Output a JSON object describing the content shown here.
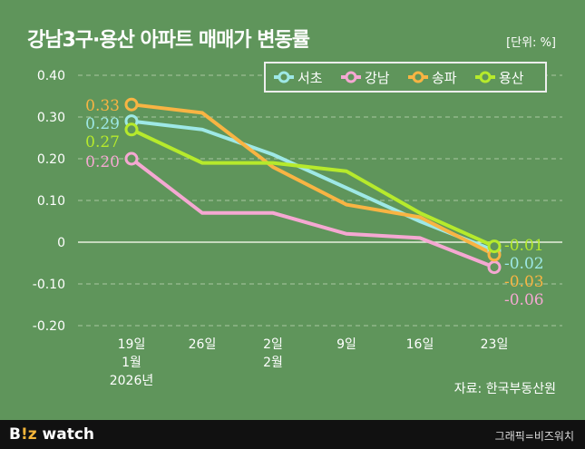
{
  "title": "강남3구·용산 아파트 매매가 변동률",
  "unit": "[단위: %]",
  "source": "자료: 한국부동산원",
  "footer": {
    "logo_a": "B",
    "logo_b": "!z",
    "logo_c": " watch",
    "credit": "그래픽=비즈워치"
  },
  "chart_data": {
    "type": "line",
    "title": "강남3구·용산 아파트 매매가 변동률",
    "ylabel": "%",
    "ylim": [
      -0.2,
      0.4
    ],
    "yticks": [
      "0.40",
      "0.30",
      "0.20",
      "0.10",
      "0",
      "-0.10",
      "-0.20"
    ],
    "ytick_values": [
      0.4,
      0.3,
      0.2,
      0.1,
      0,
      -0.1,
      -0.2
    ],
    "categories": [
      [
        "19일",
        "1월",
        "2026년"
      ],
      [
        "26일"
      ],
      [
        "2일",
        "2월"
      ],
      [
        "9일"
      ],
      [
        "16일"
      ],
      [
        "23일"
      ]
    ],
    "legend_position": "top-right",
    "series": [
      {
        "name": "서초",
        "color": "#9ee8e6",
        "values": [
          0.29,
          0.27,
          0.21,
          0.13,
          0.05,
          -0.02
        ],
        "labels": [
          "0.29",
          "-0.02"
        ]
      },
      {
        "name": "강남",
        "color": "#f5a8d2",
        "values": [
          0.2,
          0.07,
          0.07,
          0.02,
          0.01,
          -0.06
        ],
        "labels": [
          "0.20",
          "-0.06"
        ]
      },
      {
        "name": "송파",
        "color": "#f8b443",
        "values": [
          0.33,
          0.31,
          0.18,
          0.09,
          0.06,
          -0.03
        ],
        "labels": [
          "0.33",
          "-0.03"
        ]
      },
      {
        "name": "용산",
        "color": "#b6ea2c",
        "values": [
          0.27,
          0.19,
          0.19,
          0.17,
          0.07,
          -0.01
        ],
        "labels": [
          "0.27",
          "-0.01"
        ]
      }
    ]
  }
}
